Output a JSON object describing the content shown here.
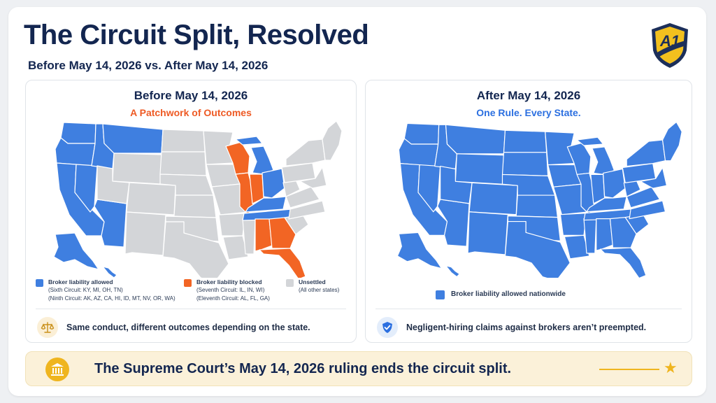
{
  "title": "The Circuit Split, Resolved",
  "subtitle": "Before May 14, 2026 vs. After May 14, 2026",
  "logo_text": "A1",
  "colors": {
    "allowed": "#3f7fe0",
    "blocked": "#f26524",
    "unsettled": "#d3d5d8",
    "accent": "#efb51f",
    "navy": "#132650"
  },
  "before": {
    "title": "Before May 14, 2026",
    "subtitle": "A Patchwork of Outcomes",
    "legend": [
      {
        "label": "Broker liability allowed",
        "details": [
          "(Sixth Circuit: KY, MI, OH, TN)",
          "(Ninth Circuit: AK, AZ, CA, HI, ID, MT, NV, OR, WA)"
        ],
        "color": "allowed"
      },
      {
        "label": "Broker liability blocked",
        "details": [
          "(Seventh Circuit: IL, IN, WI)",
          "(Eleventh Circuit: AL, FL, GA)"
        ],
        "color": "blocked"
      },
      {
        "label": "Unsettled",
        "details": [
          "(All other states)"
        ],
        "color": "unsettled"
      }
    ],
    "note_icon": "scales-icon",
    "note": "Same conduct, different outcomes depending on the state."
  },
  "after": {
    "title": "After May 14, 2026",
    "subtitle": "One Rule. Every State.",
    "legend_label": "Broker liability allowed nationwide",
    "note_icon": "shield-check-icon",
    "note": "Negligent-hiring claims against brokers aren’t preempted."
  },
  "banner": {
    "icon": "courthouse-icon",
    "text": "The Supreme Court’s May 14, 2026 ruling ends the circuit split."
  }
}
